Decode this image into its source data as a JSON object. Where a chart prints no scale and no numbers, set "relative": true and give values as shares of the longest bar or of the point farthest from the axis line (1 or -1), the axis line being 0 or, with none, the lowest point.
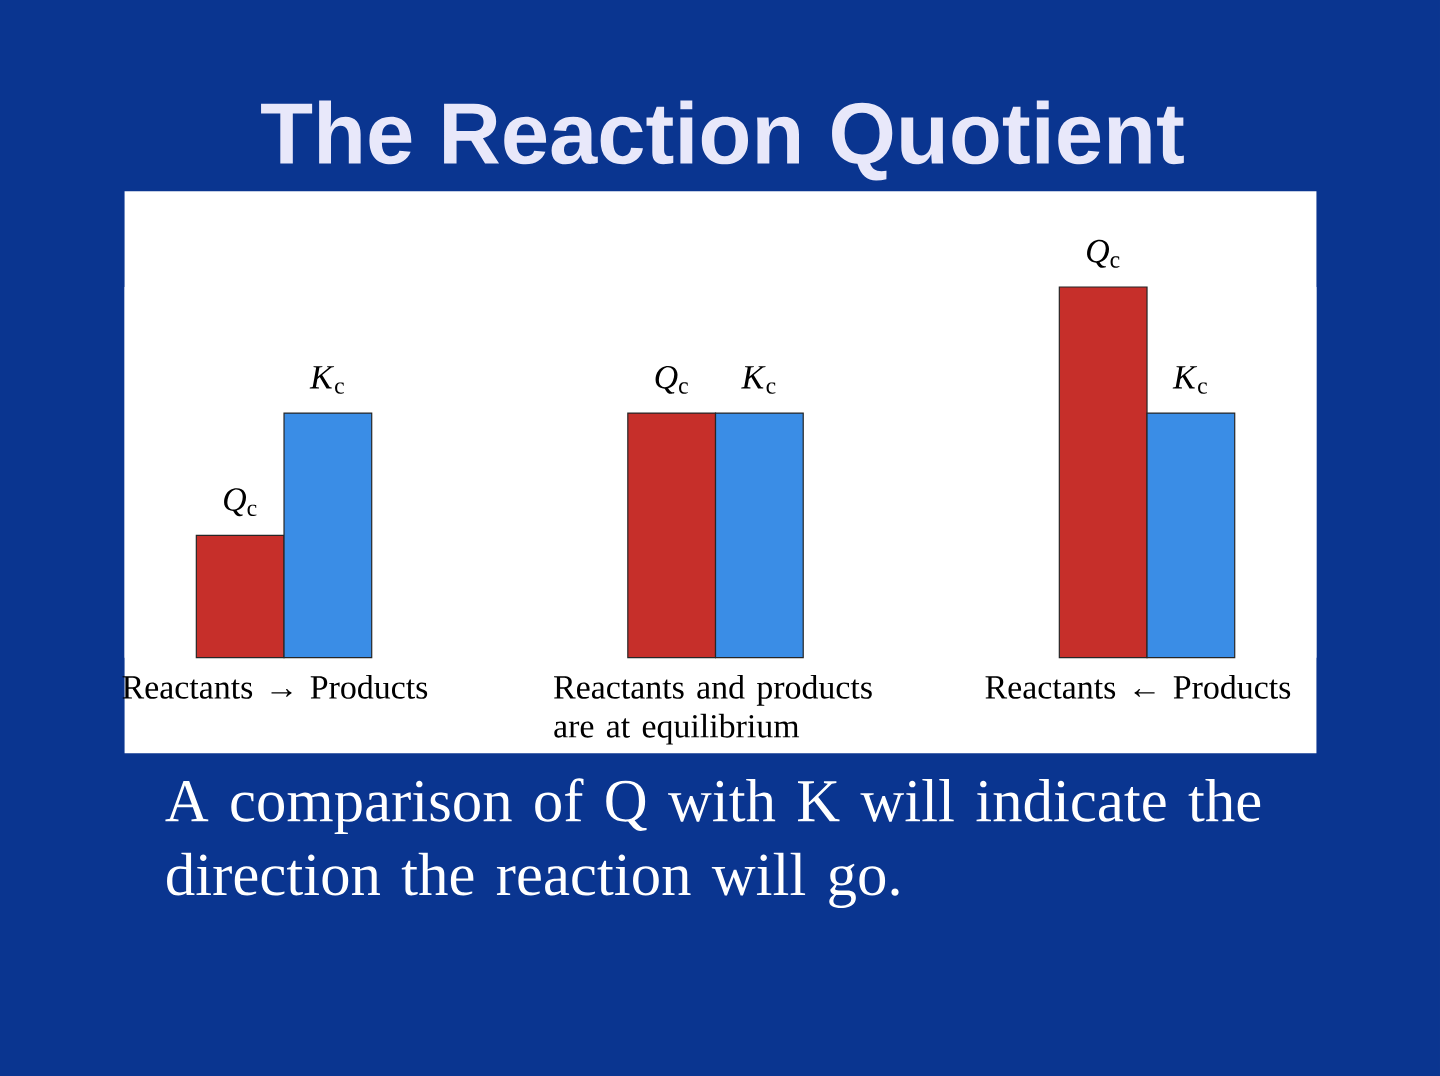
{
  "chart_data": {
    "type": "bar",
    "title": "The Reaction Quotient",
    "categories": [
      "Reactants → Products",
      "Reactants and products are at equilibrium",
      "Reactants ← Products"
    ],
    "relative": true,
    "series": [
      {
        "name": "*Q*$_{c}$",
        "color": "#c62f2a",
        "values": [
          0.33,
          0.66,
          1
        ]
      },
      {
        "name": "*K*$_{c}$",
        "color": "#3a8de6",
        "values": [
          0.66,
          0.66,
          0.66
        ]
      }
    ],
    "annotations": [
      "A comparison of Q with K will indicate the direction the reaction will go."
    ]
  }
}
